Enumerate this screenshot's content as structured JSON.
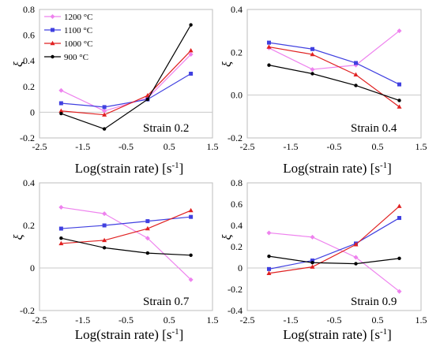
{
  "chart_data": [
    {
      "type": "line",
      "x": [
        -2,
        -1,
        0,
        1
      ],
      "xticks": [
        "-2.5",
        "-1.5",
        "-0.5",
        "0.5",
        "1.5"
      ],
      "xlim": [
        -2.5,
        1.5
      ],
      "ylim": [
        -0.2,
        0.8
      ],
      "yticks": [
        "-0.2",
        "0",
        "0.2",
        "0.4",
        "0.6",
        "0.8"
      ],
      "xlabel": "Log(strain rate) [s",
      "xlabel_sup": "-1",
      "xlabel_end": "]",
      "ylabel": "ξ",
      "annotation": "Strain 0.2",
      "legend": "top-left",
      "series": [
        {
          "name": "1200 °C",
          "color": "#ee82ee",
          "marker": "diamond",
          "values": [
            0.17,
            0.01,
            0.11,
            0.45
          ]
        },
        {
          "name": "1100 °C",
          "color": "#4040e0",
          "marker": "square",
          "values": [
            0.07,
            0.04,
            0.1,
            0.3
          ]
        },
        {
          "name": "1000 °C",
          "color": "#e02020",
          "marker": "triangle",
          "values": [
            0.01,
            -0.02,
            0.13,
            0.48
          ]
        },
        {
          "name": "900 °C",
          "color": "#000000",
          "marker": "circle",
          "values": [
            -0.01,
            -0.13,
            0.1,
            0.68
          ]
        }
      ]
    },
    {
      "type": "line",
      "x": [
        -2,
        -1,
        0,
        1
      ],
      "xticks": [
        "-2.5",
        "-1.5",
        "-0.5",
        "0.5",
        "1.5"
      ],
      "xlim": [
        -2.5,
        1.5
      ],
      "ylim": [
        -0.2,
        0.4
      ],
      "yticks": [
        "-0.2",
        "0.0",
        "0.2",
        "0.4"
      ],
      "xlabel": "Log(strain rate) [s",
      "xlabel_sup": "-1",
      "xlabel_end": "]",
      "ylabel": "ξ",
      "annotation": "Strain 0.4",
      "series": [
        {
          "color": "#ee82ee",
          "marker": "diamond",
          "values": [
            0.22,
            0.12,
            0.14,
            0.3
          ]
        },
        {
          "color": "#4040e0",
          "marker": "square",
          "values": [
            0.245,
            0.215,
            0.15,
            0.05
          ]
        },
        {
          "color": "#e02020",
          "marker": "triangle",
          "values": [
            0.225,
            0.19,
            0.095,
            -0.055
          ]
        },
        {
          "color": "#000000",
          "marker": "circle",
          "values": [
            0.14,
            0.1,
            0.045,
            -0.025
          ]
        }
      ]
    },
    {
      "type": "line",
      "x": [
        -2,
        -1,
        0,
        1
      ],
      "xticks": [
        "-2.5",
        "-1.5",
        "-0.5",
        "0.5",
        "1.5"
      ],
      "xlim": [
        -2.5,
        1.5
      ],
      "ylim": [
        -0.2,
        0.4
      ],
      "yticks": [
        "-0.2",
        "0",
        "0.2",
        "0.4"
      ],
      "xlabel": "Log(strain rate) [s",
      "xlabel_sup": "-1",
      "xlabel_end": "]",
      "ylabel": "ξ",
      "annotation": "Strain 0.7",
      "series": [
        {
          "color": "#ee82ee",
          "marker": "diamond",
          "values": [
            0.285,
            0.255,
            0.14,
            -0.055
          ]
        },
        {
          "color": "#4040e0",
          "marker": "square",
          "values": [
            0.185,
            0.2,
            0.22,
            0.24
          ]
        },
        {
          "color": "#e02020",
          "marker": "triangle",
          "values": [
            0.115,
            0.13,
            0.185,
            0.27
          ]
        },
        {
          "color": "#000000",
          "marker": "circle",
          "values": [
            0.14,
            0.095,
            0.07,
            0.06
          ]
        }
      ]
    },
    {
      "type": "line",
      "x": [
        -2,
        -1,
        0,
        1
      ],
      "xticks": [
        "-2.5",
        "-1.5",
        "-0.5",
        "0.5",
        "1.5"
      ],
      "xlim": [
        -2.5,
        1.5
      ],
      "ylim": [
        -0.4,
        0.8
      ],
      "yticks": [
        "-0.4",
        "-0.2",
        "0",
        "0.2",
        "0.4",
        "0.6",
        "0.8"
      ],
      "xlabel": "Log(strain rate) [s",
      "xlabel_sup": "-1",
      "xlabel_end": "]",
      "ylabel": "ξ",
      "annotation": "Strain 0.9",
      "series": [
        {
          "color": "#ee82ee",
          "marker": "diamond",
          "values": [
            0.33,
            0.29,
            0.1,
            -0.22
          ]
        },
        {
          "color": "#4040e0",
          "marker": "square",
          "values": [
            -0.01,
            0.07,
            0.23,
            0.47
          ]
        },
        {
          "color": "#e02020",
          "marker": "triangle",
          "values": [
            -0.05,
            0.01,
            0.22,
            0.58
          ]
        },
        {
          "color": "#000000",
          "marker": "circle",
          "values": [
            0.11,
            0.05,
            0.04,
            0.09
          ]
        }
      ]
    }
  ]
}
